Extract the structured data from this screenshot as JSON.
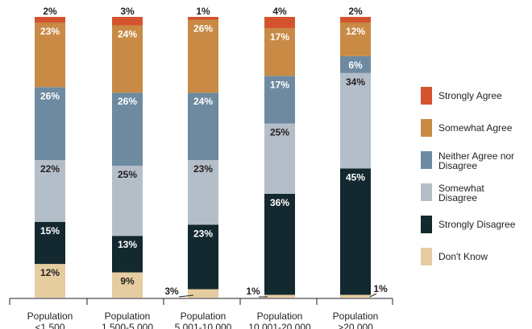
{
  "chart_data": {
    "type": "bar",
    "stacked": true,
    "percent": true,
    "categories": [
      "Population\n<1,500",
      "Population\n1,500-5,000",
      "Population\n5,001-10,000",
      "Population\n10,001-20,000",
      ">20,000"
    ],
    "category_labels": [
      [
        "Population",
        "<1,500"
      ],
      [
        "Population",
        "1,500-5,000"
      ],
      [
        "Population",
        "5,001-10,000"
      ],
      [
        "Population",
        "10,001-20,000"
      ],
      [
        "Population",
        ">20,000"
      ]
    ],
    "series": [
      {
        "name": "Don't Know",
        "color": "#e5cda0",
        "values": [
          12,
          9,
          3,
          1,
          1
        ]
      },
      {
        "name": "Strongly Disagree",
        "color": "#13282f",
        "values": [
          15,
          13,
          23,
          36,
          45
        ]
      },
      {
        "name": "Somewhat Disagree",
        "color": "#b4bec8",
        "values": [
          22,
          25,
          23,
          25,
          34
        ]
      },
      {
        "name": "Neither Agree nor Disagree",
        "color": "#6d8aa0",
        "values": [
          26,
          26,
          24,
          17,
          6
        ]
      },
      {
        "name": "Somewhat Agree",
        "color": "#c88a45",
        "values": [
          23,
          24,
          26,
          17,
          12
        ]
      },
      {
        "name": "Strongly Agree",
        "color": "#d4532e",
        "values": [
          2,
          3,
          1,
          4,
          2
        ]
      }
    ],
    "data_labels": [
      [
        "12%",
        "15%",
        "22%",
        "26%",
        "23%",
        "2%"
      ],
      [
        "9%",
        "13%",
        "25%",
        "26%",
        "24%",
        "3%"
      ],
      [
        "3%",
        "23%",
        "23%",
        "24%",
        "26%",
        "1%"
      ],
      [
        "1%",
        "36%",
        "25%",
        "17%",
        "17%",
        "4%"
      ],
      [
        "1%",
        "45%",
        "34%",
        "6%",
        "12%",
        "2%"
      ]
    ],
    "ylim": [
      0,
      100
    ],
    "legend_position": "right",
    "legend": [
      {
        "label": "Strongly Agree",
        "color": "#d4532e"
      },
      {
        "label": "Somewhat Agree",
        "color": "#c88a45"
      },
      {
        "label": "Neither Agree nor Disagree",
        "color": "#6d8aa0"
      },
      {
        "label": "Somewhat Disagree",
        "color": "#b4bec8"
      },
      {
        "label": "Strongly Disagree",
        "color": "#13282f"
      },
      {
        "label": "Don't Know",
        "color": "#e5cda0"
      }
    ]
  },
  "legend_lines": [
    [
      "Strongly Agree"
    ],
    [
      "Somewhat Agree"
    ],
    [
      "Neither Agree nor",
      "Disagree"
    ],
    [
      "Somewhat",
      "Disagree"
    ],
    [
      "Strongly Disagree"
    ],
    [
      "Don't Know"
    ]
  ]
}
